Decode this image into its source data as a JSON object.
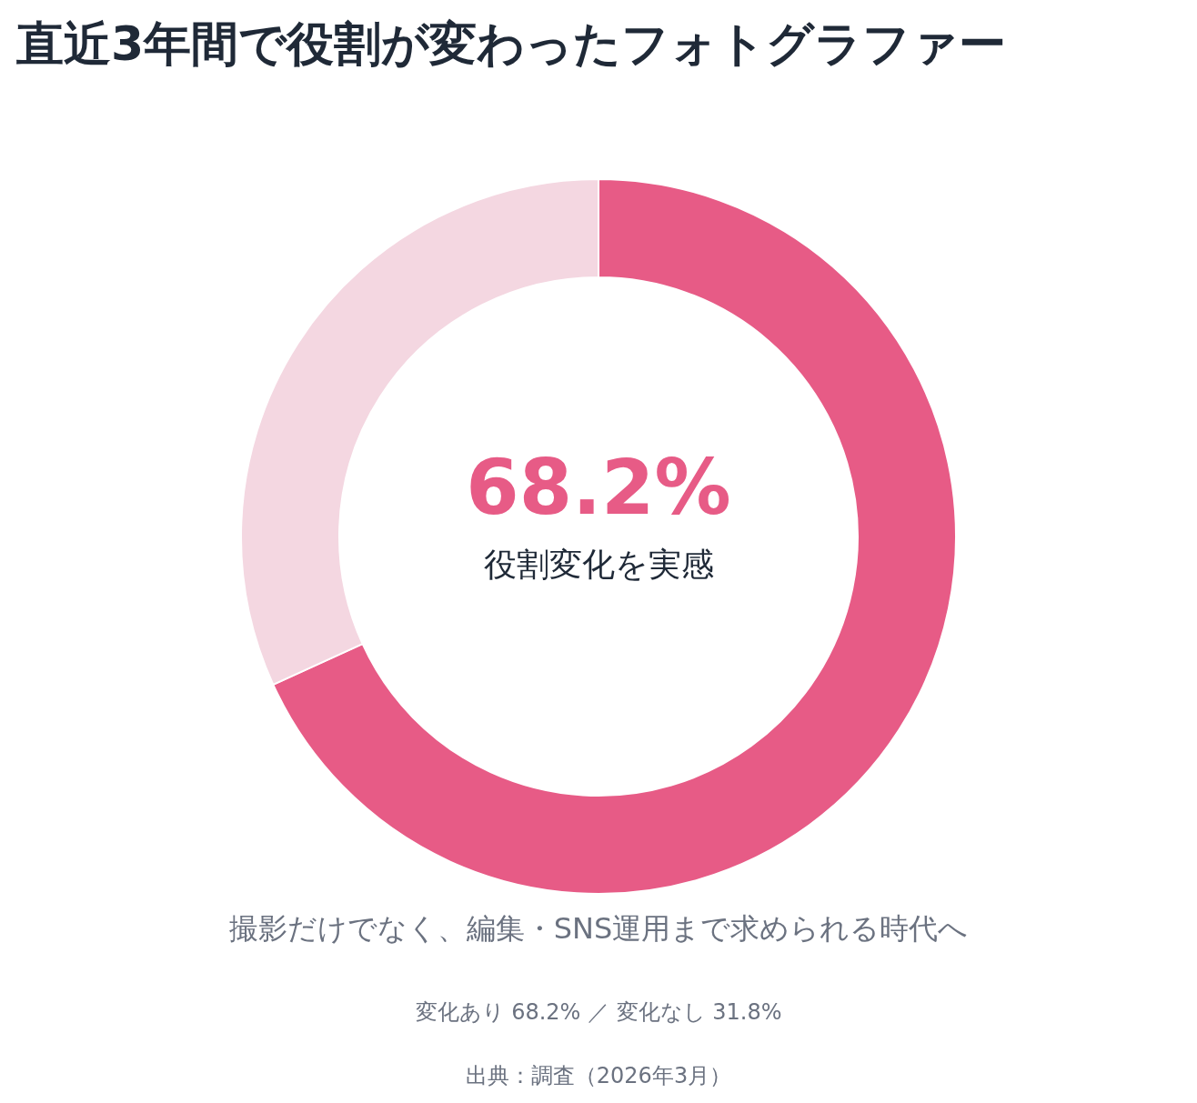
{
  "chart_data": {
    "type": "donut",
    "title": "直近3年間で役割が変わったフォトグラファー",
    "subtitle": "撮影だけでなく、編集・SNS運用まで求められる時代へ",
    "categories": [
      null,
      null
    ],
    "values": [
      68.2,
      31.8
    ],
    "colors": [
      "#e75b86",
      "#f4d7e1"
    ],
    "annotations": [
      "68.2%",
      "役割変化を実感",
      "変化あり 68.2% ／ 変化なし 31.8%",
      "出典：調査（2026年3月）"
    ]
  }
}
